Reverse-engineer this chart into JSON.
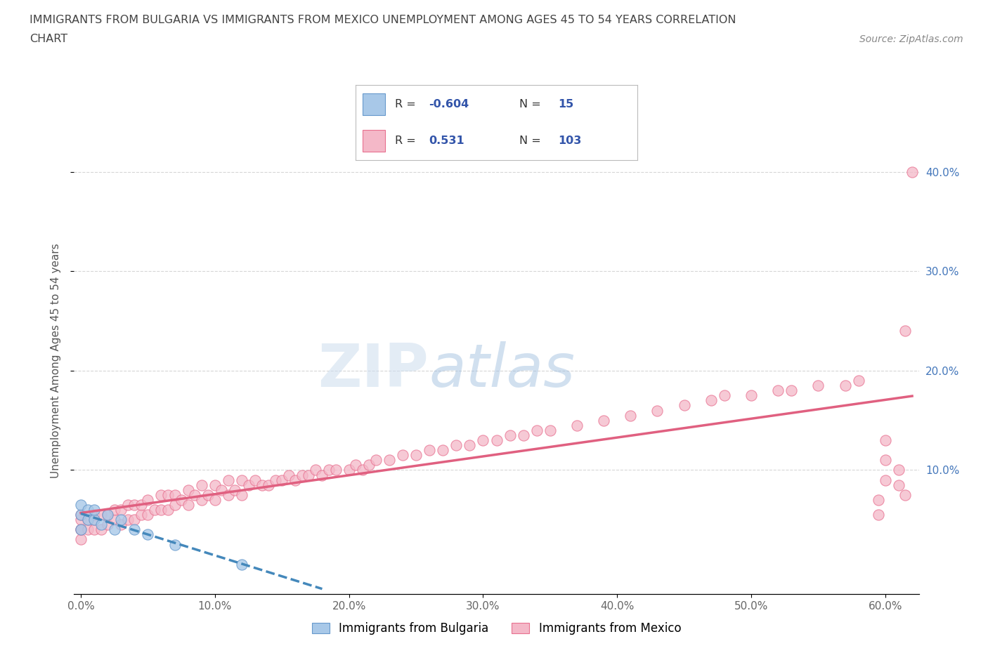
{
  "title_line1": "IMMIGRANTS FROM BULGARIA VS IMMIGRANTS FROM MEXICO UNEMPLOYMENT AMONG AGES 45 TO 54 YEARS CORRELATION",
  "title_line2": "CHART",
  "source": "Source: ZipAtlas.com",
  "ylabel": "Unemployment Among Ages 45 to 54 years",
  "xlabel": "",
  "xlim": [
    -0.005,
    0.625
  ],
  "ylim": [
    -0.025,
    0.445
  ],
  "xticks": [
    0.0,
    0.1,
    0.2,
    0.3,
    0.4,
    0.5,
    0.6
  ],
  "xticklabels": [
    "0.0%",
    "10.0%",
    "20.0%",
    "30.0%",
    "40.0%",
    "50.0%",
    "60.0%"
  ],
  "yticks_right": [
    0.1,
    0.2,
    0.3,
    0.4
  ],
  "ytick_labels_right": [
    "10.0%",
    "20.0%",
    "30.0%",
    "40.0%"
  ],
  "grid_yticks": [
    0.1,
    0.2,
    0.3,
    0.4
  ],
  "watermark_left": "ZIP",
  "watermark_right": "atlas",
  "bulgaria_color": "#a8c8e8",
  "bulgaria_edge_color": "#6699cc",
  "mexico_color": "#f4b8c8",
  "mexico_edge_color": "#e87090",
  "bulgaria_line_color": "#4488bb",
  "mexico_line_color": "#e06080",
  "R_bulgaria": -0.604,
  "N_bulgaria": 15,
  "R_mexico": 0.531,
  "N_mexico": 103,
  "bulgaria_points_x": [
    0.0,
    0.0,
    0.0,
    0.005,
    0.005,
    0.01,
    0.01,
    0.015,
    0.02,
    0.025,
    0.03,
    0.04,
    0.05,
    0.07,
    0.12
  ],
  "bulgaria_points_y": [
    0.04,
    0.055,
    0.065,
    0.05,
    0.06,
    0.05,
    0.06,
    0.045,
    0.055,
    0.04,
    0.05,
    0.04,
    0.035,
    0.025,
    0.005
  ],
  "mexico_points_x": [
    0.0,
    0.0,
    0.0,
    0.0,
    0.0,
    0.005,
    0.005,
    0.01,
    0.01,
    0.01,
    0.015,
    0.015,
    0.02,
    0.02,
    0.025,
    0.025,
    0.03,
    0.03,
    0.035,
    0.035,
    0.04,
    0.04,
    0.045,
    0.045,
    0.05,
    0.05,
    0.055,
    0.06,
    0.06,
    0.065,
    0.065,
    0.07,
    0.07,
    0.075,
    0.08,
    0.08,
    0.085,
    0.09,
    0.09,
    0.095,
    0.1,
    0.1,
    0.105,
    0.11,
    0.11,
    0.115,
    0.12,
    0.12,
    0.125,
    0.13,
    0.135,
    0.14,
    0.145,
    0.15,
    0.155,
    0.16,
    0.165,
    0.17,
    0.175,
    0.18,
    0.185,
    0.19,
    0.2,
    0.205,
    0.21,
    0.215,
    0.22,
    0.23,
    0.24,
    0.25,
    0.26,
    0.27,
    0.28,
    0.29,
    0.3,
    0.31,
    0.32,
    0.33,
    0.34,
    0.35,
    0.37,
    0.39,
    0.41,
    0.43,
    0.45,
    0.47,
    0.48,
    0.5,
    0.52,
    0.53,
    0.55,
    0.57,
    0.58,
    0.595,
    0.595,
    0.6,
    0.6,
    0.6,
    0.61,
    0.61,
    0.615,
    0.615,
    0.62
  ],
  "mexico_points_y": [
    0.03,
    0.04,
    0.05,
    0.04,
    0.055,
    0.04,
    0.05,
    0.04,
    0.05,
    0.055,
    0.04,
    0.055,
    0.045,
    0.055,
    0.05,
    0.06,
    0.045,
    0.06,
    0.05,
    0.065,
    0.05,
    0.065,
    0.055,
    0.065,
    0.055,
    0.07,
    0.06,
    0.06,
    0.075,
    0.06,
    0.075,
    0.065,
    0.075,
    0.07,
    0.065,
    0.08,
    0.075,
    0.07,
    0.085,
    0.075,
    0.07,
    0.085,
    0.08,
    0.075,
    0.09,
    0.08,
    0.075,
    0.09,
    0.085,
    0.09,
    0.085,
    0.085,
    0.09,
    0.09,
    0.095,
    0.09,
    0.095,
    0.095,
    0.1,
    0.095,
    0.1,
    0.1,
    0.1,
    0.105,
    0.1,
    0.105,
    0.11,
    0.11,
    0.115,
    0.115,
    0.12,
    0.12,
    0.125,
    0.125,
    0.13,
    0.13,
    0.135,
    0.135,
    0.14,
    0.14,
    0.145,
    0.15,
    0.155,
    0.16,
    0.165,
    0.17,
    0.175,
    0.175,
    0.18,
    0.18,
    0.185,
    0.185,
    0.19,
    0.055,
    0.07,
    0.09,
    0.11,
    0.13,
    0.085,
    0.1,
    0.075,
    0.24,
    0.4
  ],
  "background_color": "#ffffff",
  "grid_color": "#cccccc",
  "title_color": "#444444",
  "axis_label_color": "#555555",
  "tick_label_color": "#666666",
  "right_tick_color": "#4477bb"
}
